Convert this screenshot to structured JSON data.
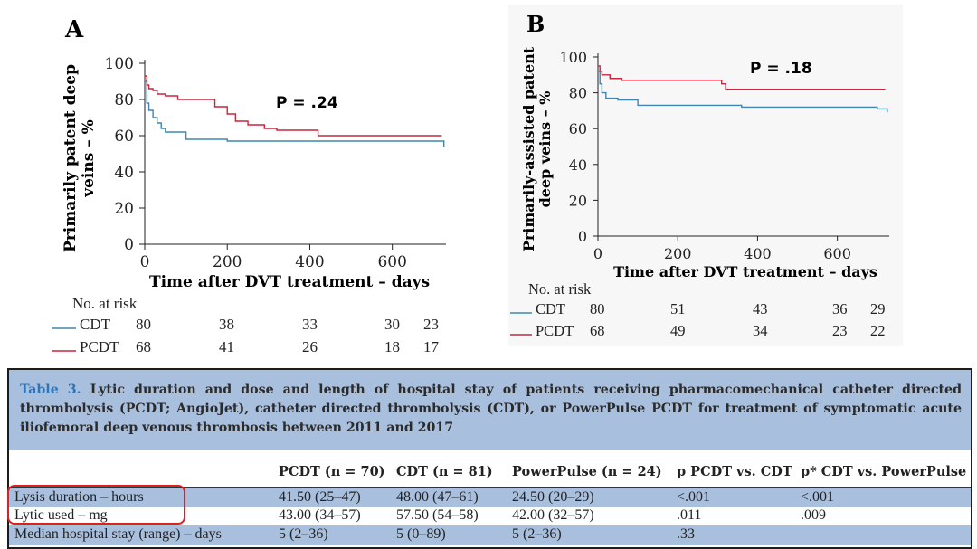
{
  "colors": {
    "cdt": "#3f86b5",
    "pcdt": "#c9253d",
    "table_band": "#a8bfde",
    "highlight": "#e01f1f",
    "caption_accent": "#2f74b5"
  },
  "panel_a": {
    "letter": "A",
    "ylabel_line1": "Primarily patent deep",
    "ylabel_line2": "veins – %",
    "xlabel": "Time after DVT treatment – days",
    "yticks": [
      "100",
      "80",
      "60",
      "40",
      "20",
      "0"
    ],
    "xticks": [
      "0",
      "200",
      "400",
      "600"
    ],
    "p_value": "P = .24",
    "risk_title": "No. at risk",
    "risk_rows": [
      {
        "label": "CDT",
        "values": [
          "80",
          "38",
          "33",
          "30",
          "23"
        ]
      },
      {
        "label": "PCDT",
        "values": [
          "68",
          "41",
          "26",
          "18",
          "17"
        ]
      }
    ]
  },
  "panel_b": {
    "letter": "B",
    "ylabel_line1": "Primarily-assisted patent",
    "ylabel_line2": "deep veins – %",
    "xlabel": "Time after DVT treatment – days",
    "yticks": [
      "100",
      "80",
      "60",
      "40",
      "20",
      "0"
    ],
    "xticks": [
      "0",
      "200",
      "400",
      "600"
    ],
    "p_value": "P = .18",
    "risk_title": "No. at risk",
    "risk_rows": [
      {
        "label": "CDT",
        "values": [
          "80",
          "51",
          "43",
          "36",
          "29"
        ]
      },
      {
        "label": "PCDT",
        "values": [
          "68",
          "49",
          "34",
          "23",
          "22"
        ]
      }
    ]
  },
  "chart_data": [
    {
      "type": "line",
      "title": "A",
      "xlabel": "Time after DVT treatment – days",
      "ylabel": "Primarily patent deep veins – %",
      "xlim": [
        0,
        730
      ],
      "ylim": [
        0,
        100
      ],
      "grid": false,
      "annotation": "P = .24",
      "series": [
        {
          "name": "CDT",
          "x": [
            0,
            5,
            10,
            20,
            30,
            40,
            50,
            60,
            80,
            100,
            200,
            400,
            600,
            720,
            725
          ],
          "y": [
            90,
            78,
            74,
            70,
            67,
            64,
            62,
            62,
            62,
            58,
            57,
            57,
            57,
            57,
            54
          ]
        },
        {
          "name": "PCDT",
          "x": [
            0,
            5,
            10,
            20,
            30,
            50,
            80,
            150,
            170,
            200,
            220,
            250,
            290,
            320,
            420,
            720
          ],
          "y": [
            93,
            88,
            86,
            85,
            83,
            82,
            80,
            80,
            76,
            72,
            68,
            66,
            64,
            63,
            60,
            60
          ]
        }
      ]
    },
    {
      "type": "line",
      "title": "B",
      "xlabel": "Time after DVT treatment – days",
      "ylabel": "Primarily-assisted patent deep veins – %",
      "xlim": [
        0,
        730
      ],
      "ylim": [
        0,
        100
      ],
      "grid": false,
      "annotation": "P = .18",
      "series": [
        {
          "name": "CDT",
          "x": [
            0,
            5,
            10,
            20,
            50,
            100,
            200,
            360,
            700,
            720,
            725
          ],
          "y": [
            92,
            85,
            80,
            77,
            76,
            73,
            73,
            72,
            71,
            71,
            69
          ]
        },
        {
          "name": "PCDT",
          "x": [
            0,
            5,
            10,
            30,
            60,
            300,
            310,
            320,
            720
          ],
          "y": [
            95,
            92,
            90,
            88,
            87,
            87,
            85,
            82,
            82
          ]
        }
      ]
    }
  ],
  "table": {
    "caption_label": "Table 3.",
    "caption_text": "Lytic duration and dose and length of hospital stay of patients receiving pharmacomechanical catheter directed thrombolysis (PCDT; AngioJet), catheter directed thrombolysis (CDT), or PowerPulse PCDT for treatment of symptomatic acute iliofemoral deep venous thrombosis between 2011 and 2017",
    "headers": [
      "",
      "PCDT (n = 70)",
      "CDT (n = 81)",
      "PowerPulse (n = 24)",
      "p PCDT vs. CDT",
      "p* CDT vs. PowerPulse"
    ],
    "rows": [
      [
        "Lysis duration – hours",
        "41.50 (25–47)",
        "48.00 (47–61)",
        "24.50 (20–29)",
        "<.001",
        "<.001"
      ],
      [
        "Lytic used – mg",
        "43.00 (34–57)",
        "57.50 (54–58)",
        "42.00 (32–57)",
        ".011",
        ".009"
      ],
      [
        "Median hospital stay (range) – days",
        "5 (2–36)",
        "5 (0–89)",
        "5 (2–36)",
        ".33",
        ""
      ]
    ]
  }
}
